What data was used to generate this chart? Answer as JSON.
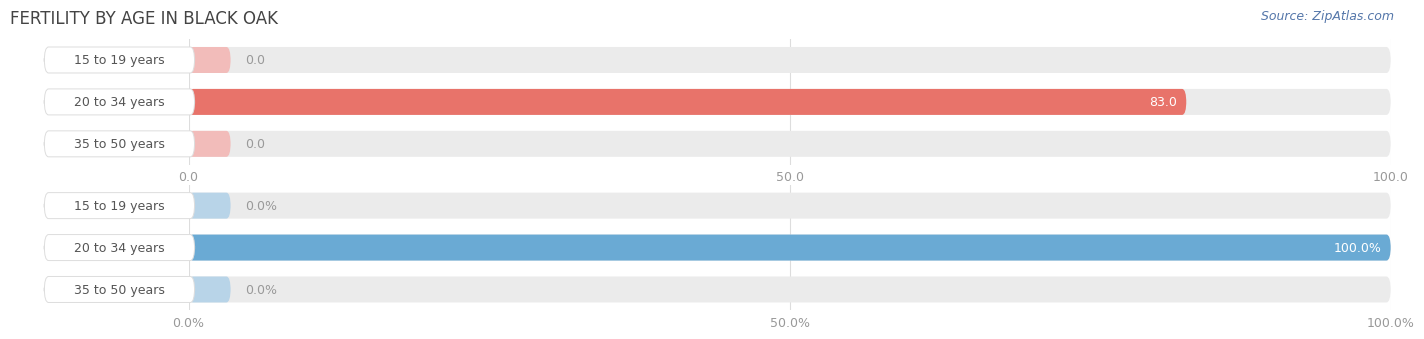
{
  "title": "FERTILITY BY AGE IN BLACK OAK",
  "source_text": "Source: ZipAtlas.com",
  "top_chart": {
    "categories": [
      "15 to 19 years",
      "20 to 34 years",
      "35 to 50 years"
    ],
    "values": [
      0.0,
      83.0,
      0.0
    ],
    "xlim": [
      0,
      100
    ],
    "xticks": [
      0.0,
      50.0,
      100.0
    ],
    "xtick_labels": [
      "0.0",
      "50.0",
      "100.0"
    ],
    "bar_color_active": "#E8736A",
    "bar_color_inactive": "#F2BCBA",
    "bar_bg_color": "#EBEBEB"
  },
  "bottom_chart": {
    "categories": [
      "15 to 19 years",
      "20 to 34 years",
      "35 to 50 years"
    ],
    "values": [
      0.0,
      100.0,
      0.0
    ],
    "xlim": [
      0,
      100
    ],
    "xticks": [
      0.0,
      50.0,
      100.0
    ],
    "xtick_labels": [
      "0.0%",
      "50.0%",
      "100.0%"
    ],
    "bar_color_active": "#6AAAD4",
    "bar_color_inactive": "#B8D4E8",
    "bar_bg_color": "#EBEBEB"
  },
  "label_pill_color": "#FFFFFF",
  "label_pill_edge_color": "#DDDDDD",
  "title_color": "#444444",
  "title_fontsize": 12,
  "source_fontsize": 9,
  "source_color": "#5577AA",
  "tick_fontsize": 9,
  "category_fontsize": 9,
  "value_fontsize": 9,
  "bar_height": 0.62,
  "fig_bg_color": "#FFFFFF"
}
